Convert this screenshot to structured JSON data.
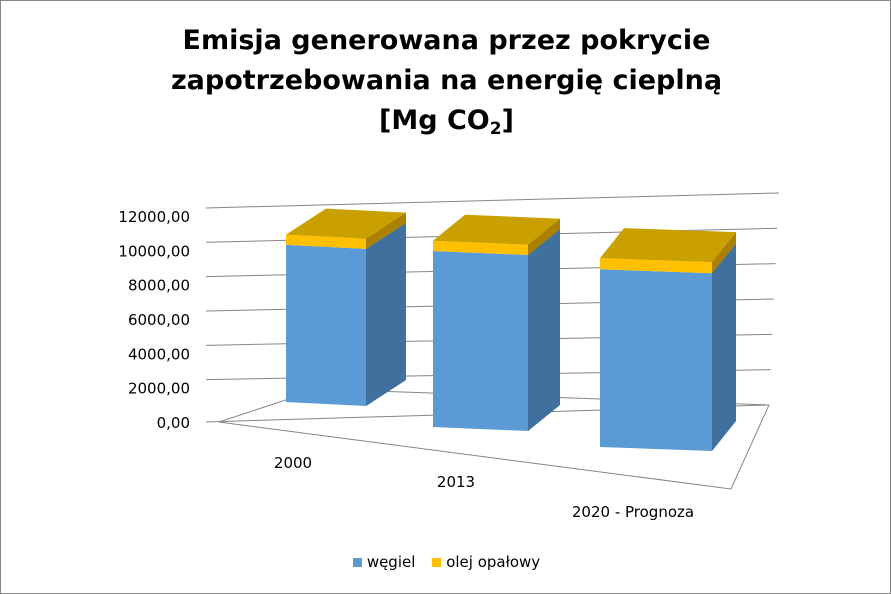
{
  "chart_data": {
    "type": "bar",
    "subtype": "3d-stacked-column",
    "title": "Emisja generowana przez pokrycie zapotrzebowania na energię cieplną [Mg CO2]",
    "title_lines": [
      "Emisja generowana przez pokrycie",
      "zapotrzebowania na energię cieplną",
      "[Mg CO"
    ],
    "title_subscript": "2",
    "title_suffix": "]",
    "categories": [
      "2000",
      "2013",
      "2020 - Prognoza"
    ],
    "series": [
      {
        "name": "węgiel",
        "color": "#5B9BD5",
        "values": [
          9150,
          10250,
          10350
        ]
      },
      {
        "name": "olej opałowy",
        "color": "#FFC000",
        "values": [
          600,
          600,
          650
        ]
      }
    ],
    "yticks": [
      "0,00",
      "2000,00",
      "4000,00",
      "6000,00",
      "8000,00",
      "10000,00",
      "12000,00"
    ],
    "ylim": [
      0,
      12000
    ],
    "grid": true,
    "legend": "bottom"
  }
}
